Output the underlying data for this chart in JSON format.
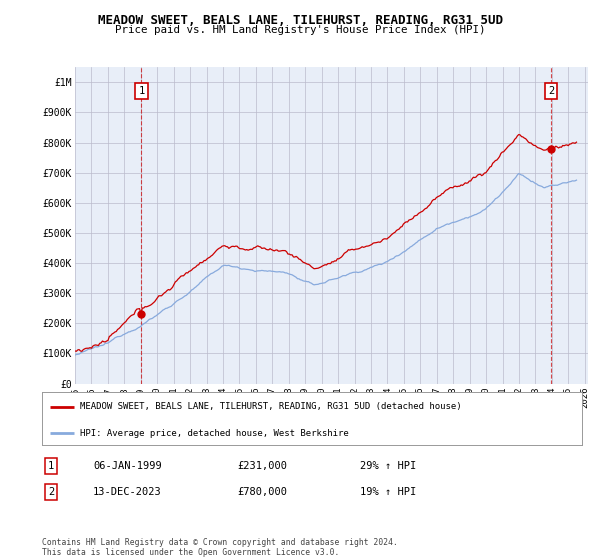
{
  "title": "MEADOW SWEET, BEALS LANE, TILEHURST, READING, RG31 5UD",
  "subtitle": "Price paid vs. HM Land Registry's House Price Index (HPI)",
  "ylim": [
    0,
    1050000
  ],
  "yticks": [
    0,
    100000,
    200000,
    300000,
    400000,
    500000,
    600000,
    700000,
    800000,
    900000,
    1000000
  ],
  "ytick_labels": [
    "£0",
    "£100K",
    "£200K",
    "£300K",
    "£400K",
    "£500K",
    "£600K",
    "£700K",
    "£800K",
    "£900K",
    "£1M"
  ],
  "xlim_start": 1995.3,
  "xlim_end": 2026.2,
  "xticks": [
    1995,
    1996,
    1997,
    1998,
    1999,
    2000,
    2001,
    2002,
    2003,
    2004,
    2005,
    2006,
    2007,
    2008,
    2009,
    2010,
    2011,
    2012,
    2013,
    2014,
    2015,
    2016,
    2017,
    2018,
    2019,
    2020,
    2021,
    2022,
    2023,
    2024,
    2025,
    2026
  ],
  "line1_color": "#cc0000",
  "line2_color": "#88aadd",
  "plot_bg": "#e8eef8",
  "point1_x": 1999.04,
  "point1_y": 231000,
  "point2_x": 2023.96,
  "point2_y": 780000,
  "point1_label": "1",
  "point2_label": "2",
  "legend_line1": "MEADOW SWEET, BEALS LANE, TILEHURST, READING, RG31 5UD (detached house)",
  "legend_line2": "HPI: Average price, detached house, West Berkshire",
  "table_row1": [
    "1",
    "06-JAN-1999",
    "£231,000",
    "29% ↑ HPI"
  ],
  "table_row2": [
    "2",
    "13-DEC-2023",
    "£780,000",
    "19% ↑ HPI"
  ],
  "footer": "Contains HM Land Registry data © Crown copyright and database right 2024.\nThis data is licensed under the Open Government Licence v3.0.",
  "bg_color": "#ffffff",
  "grid_color": "#bbbbcc"
}
